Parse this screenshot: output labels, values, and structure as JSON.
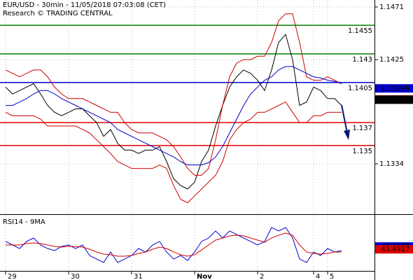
{
  "chart_data": [
    {
      "type": "line",
      "title": "EUR/USD - 30min - 11/05/2018 07:03:08 (CET)",
      "subtitle": "Research © TRADING CENTRAL",
      "categories": [
        "29",
        null,
        null,
        null,
        null,
        null,
        null,
        null,
        null,
        "30",
        null,
        null,
        null,
        null,
        null,
        null,
        null,
        null,
        "31",
        null,
        null,
        null,
        null,
        null,
        null,
        null,
        null,
        "Nov",
        null,
        null,
        null,
        null,
        null,
        null,
        null,
        null,
        "2",
        null,
        null,
        null,
        null,
        null,
        null,
        null,
        "4",
        null,
        "5",
        null,
        null
      ],
      "ylim": [
        1.12906,
        1.14771
      ],
      "yticks": [
        1.1334,
        1.1425,
        1.1471
      ],
      "grid": true,
      "series": [
        {
          "color": "#000000",
          "values": [
            1.1401,
            1.1395,
            1.1398,
            1.1401,
            1.1404,
            1.1395,
            1.1385,
            1.1379,
            1.1376,
            1.1379,
            1.1382,
            1.1382,
            1.1376,
            1.137,
            1.1358,
            1.1364,
            1.1352,
            1.1346,
            1.1346,
            1.1343,
            1.1346,
            1.1346,
            1.1349,
            1.1336,
            1.1321,
            1.1315,
            1.1312,
            1.1318,
            1.1336,
            1.1346,
            1.1367,
            1.1385,
            1.1401,
            1.141,
            1.1416,
            1.1413,
            1.1407,
            1.1398,
            1.1416,
            1.144,
            1.1447,
            1.1425,
            1.1385,
            1.1388,
            1.1401,
            1.1398,
            1.1391,
            1.1391,
            1.1385
          ]
        },
        {
          "color": "#d00000",
          "values": [
            1.1416,
            1.1413,
            1.141,
            1.1413,
            1.1416,
            1.1416,
            1.141,
            1.1401,
            1.1395,
            1.1391,
            1.1391,
            1.1391,
            1.1388,
            1.1385,
            1.1382,
            1.1379,
            1.1379,
            1.137,
            1.1364,
            1.1361,
            1.1361,
            1.1361,
            1.1358,
            1.1355,
            1.1349,
            1.134,
            1.133,
            1.1324,
            1.1324,
            1.133,
            1.1355,
            1.1385,
            1.141,
            1.1422,
            1.1425,
            1.1425,
            1.1428,
            1.1428,
            1.144,
            1.1459,
            1.1465,
            1.1465,
            1.144,
            1.141,
            1.1407,
            1.1407,
            1.141,
            1.1407,
            1.1404
          ]
        },
        {
          "color": "#d00000",
          "values": [
            1.1379,
            1.1376,
            1.1376,
            1.1376,
            1.1376,
            1.1373,
            1.1367,
            1.1367,
            1.1367,
            1.1367,
            1.1367,
            1.1364,
            1.1361,
            1.1355,
            1.1349,
            1.1343,
            1.1336,
            1.1333,
            1.133,
            1.133,
            1.133,
            1.133,
            1.1333,
            1.133,
            1.1315,
            1.1303,
            1.13,
            1.1306,
            1.1312,
            1.1318,
            1.1324,
            1.1336,
            1.1355,
            1.1364,
            1.137,
            1.1373,
            1.1379,
            1.1379,
            1.1382,
            1.1385,
            1.1388,
            1.1379,
            1.137,
            1.137,
            1.1376,
            1.1376,
            1.1379,
            1.1379,
            1.1379
          ]
        },
        {
          "color": "#0000cc",
          "values": [
            1.1385,
            1.1385,
            1.1388,
            1.1391,
            1.1395,
            1.1398,
            1.1398,
            1.1395,
            1.1391,
            1.1388,
            1.1385,
            1.1382,
            1.1379,
            1.1376,
            1.1373,
            1.137,
            1.1364,
            1.1361,
            1.1358,
            1.1355,
            1.1352,
            1.1349,
            1.1346,
            1.1343,
            1.134,
            1.1336,
            1.1333,
            1.1333,
            1.1333,
            1.1335,
            1.134,
            1.1349,
            1.1361,
            1.1373,
            1.1385,
            1.1395,
            1.1401,
            1.1407,
            1.141,
            1.1416,
            1.1419,
            1.1419,
            1.1416,
            1.1413,
            1.141,
            1.1409,
            1.1407,
            1.1406,
            1.1404
          ]
        }
      ],
      "levels": [
        {
          "value": 1.1455,
          "color": "#008000"
        },
        {
          "value": 1.143,
          "color": "#008000"
        },
        {
          "value": 1.1405,
          "color": "#0000cc"
        },
        {
          "value": 1.137,
          "color": "#e00000"
        },
        {
          "value": 1.135,
          "color": "#e00000"
        }
      ],
      "price_tags": [
        {
          "value": 1.13999,
          "color": "#0000cc"
        },
        {
          "value": 1.13902,
          "color": "#e00000"
        },
        {
          "value": 1.139,
          "color": "#000000"
        }
      ]
    },
    {
      "type": "line",
      "title": "RSI14 - 9MA",
      "ylim": [
        10,
        90
      ],
      "series": [
        {
          "color": "#0000cc",
          "values": [
            55.3,
            50.0,
            44.7,
            55.3,
            60.5,
            50.0,
            44.7,
            41.6,
            47.9,
            50.0,
            44.7,
            50.0,
            34.2,
            28.9,
            23.7,
            39.5,
            23.7,
            28.9,
            34.2,
            44.7,
            39.5,
            50.0,
            55.3,
            39.5,
            28.9,
            34.2,
            26.8,
            39.5,
            55.3,
            60.5,
            71.1,
            60.5,
            71.1,
            65.8,
            60.5,
            55.3,
            50.0,
            55.3,
            76.3,
            71.1,
            76.3,
            60.5,
            28.9,
            23.7,
            39.5,
            34.2,
            44.7,
            39.5,
            41.6
          ]
        },
        {
          "color": "#d00000",
          "values": [
            50.0,
            50.0,
            50.0,
            52.1,
            53.2,
            52.1,
            50.0,
            47.9,
            46.8,
            47.9,
            47.9,
            46.8,
            43.7,
            39.5,
            36.3,
            35.3,
            33.2,
            33.2,
            34.2,
            37.4,
            39.5,
            43.7,
            46.8,
            44.7,
            39.5,
            35.3,
            33.2,
            35.3,
            42.6,
            50.0,
            57.4,
            60.5,
            63.7,
            64.7,
            63.7,
            60.5,
            57.4,
            54.2,
            60.5,
            64.7,
            67.9,
            64.7,
            50.0,
            39.5,
            37.4,
            36.3,
            37.4,
            39.5,
            39.5
          ]
        }
      ],
      "price_tags": [
        {
          "value": 47.7688,
          "color": "#0000cc"
        },
        {
          "value": 43.4917,
          "color": "#e00000"
        }
      ]
    }
  ]
}
